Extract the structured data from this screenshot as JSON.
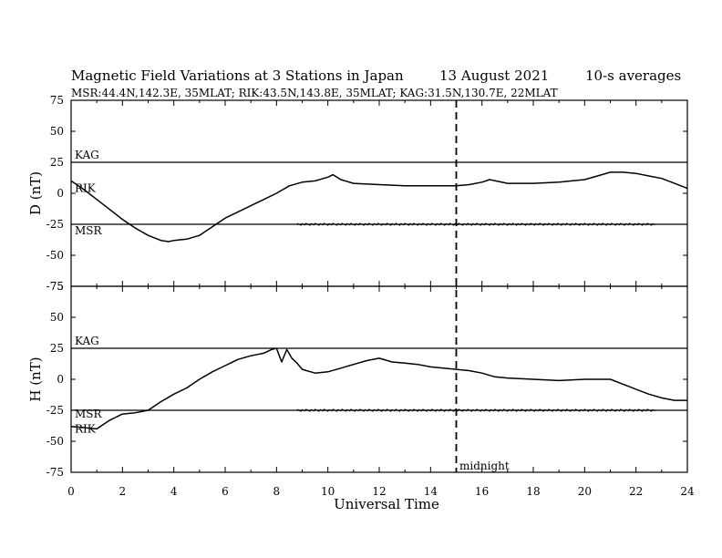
{
  "header": {
    "title": "Magnetic Field Variations at 3 Stations in Japan",
    "date": "13  August  2021",
    "averaging": "10-s averages",
    "stations_line": "MSR:44.4N,142.3E, 35MLAT;  RIK:43.5N,143.8E, 35MLAT;  KAG:31.5N,130.7E, 22MLAT"
  },
  "annotation": {
    "midnight_label": "midnight",
    "midnight_ut": 15
  },
  "chart_data": [
    {
      "type": "line",
      "panel": "D",
      "ylabel": "D (nT)",
      "ylim": [
        -75,
        75
      ],
      "yticks": [
        75,
        50,
        25,
        0,
        -25,
        -50,
        -75
      ],
      "xlim": [
        0,
        24
      ],
      "baselines": [
        {
          "station": "KAG",
          "y": 25
        },
        {
          "station": "MSR",
          "y": -25
        }
      ],
      "station_labels": [
        {
          "name": "KAG",
          "y": 28
        },
        {
          "name": "RIK",
          "y": 1
        },
        {
          "name": "MSR",
          "y": -33
        }
      ],
      "series": [
        {
          "name": "RIK",
          "x": [
            0,
            0.5,
            1,
            1.5,
            2,
            2.5,
            3,
            3.5,
            3.8,
            4,
            4.5,
            5,
            5.5,
            6,
            6.5,
            7,
            7.5,
            8,
            8.5,
            9,
            9.5,
            10,
            10.2,
            10.5,
            11,
            12,
            13,
            14,
            15,
            15.5,
            16,
            16.3,
            17,
            18,
            19,
            20,
            20.5,
            21,
            21.5,
            22,
            22.5,
            23,
            23.5,
            24
          ],
          "y": [
            10,
            3,
            -5,
            -13,
            -21,
            -28,
            -34,
            -38,
            -39,
            -38,
            -37,
            -34,
            -27,
            -20,
            -15,
            -10,
            -5,
            0,
            6,
            9,
            10,
            13,
            15,
            11,
            8,
            7,
            6,
            6,
            6,
            7,
            9,
            11,
            8,
            8,
            9,
            11,
            14,
            17,
            17,
            16,
            14,
            12,
            8,
            4
          ]
        }
      ],
      "flat_traces": [
        {
          "name": "MSR",
          "y": -25,
          "x_start": 8.8,
          "x_end": 22.8
        }
      ]
    },
    {
      "type": "line",
      "panel": "H",
      "ylabel": "H (nT)",
      "ylim": [
        -75,
        75
      ],
      "yticks": [
        75,
        50,
        25,
        0,
        -25,
        -50,
        -75
      ],
      "xlim": [
        0,
        24
      ],
      "xticks": [
        0,
        2,
        4,
        6,
        8,
        10,
        12,
        14,
        16,
        18,
        20,
        22,
        24
      ],
      "xlabel": "Universal Time",
      "baselines": [
        {
          "station": "KAG",
          "y": 25
        },
        {
          "station": "MSR",
          "y": -25
        }
      ],
      "station_labels": [
        {
          "name": "KAG",
          "y": 28
        },
        {
          "name": "MSR",
          "y": -31
        },
        {
          "name": "RIK",
          "y": -43
        }
      ],
      "series": [
        {
          "name": "RIK",
          "x": [
            0,
            0.5,
            1,
            1.5,
            2,
            2.5,
            3,
            3.5,
            4,
            4.5,
            5,
            5.5,
            6,
            6.5,
            7,
            7.5,
            7.8,
            8,
            8.2,
            8.4,
            8.6,
            8.8,
            9,
            9.5,
            10,
            10.5,
            11,
            11.5,
            12,
            12.5,
            13,
            13.5,
            14,
            14.5,
            15,
            15.5,
            16,
            16.5,
            17,
            18,
            19,
            20,
            20.5,
            21,
            21.5,
            22,
            22.5,
            23,
            23.5,
            24
          ],
          "y": [
            -38,
            -39,
            -40,
            -33,
            -28,
            -27,
            -25,
            -18,
            -12,
            -7,
            0,
            6,
            11,
            16,
            19,
            21,
            24,
            25,
            14,
            24,
            17,
            13,
            8,
            5,
            6,
            9,
            12,
            15,
            17,
            14,
            13,
            12,
            10,
            9,
            8,
            7,
            5,
            2,
            1,
            0,
            -1,
            0,
            0,
            0,
            -4,
            -8,
            -12,
            -15,
            -17,
            -17
          ]
        }
      ],
      "flat_traces": [
        {
          "name": "MSR",
          "y": -25,
          "x_start": 8.8,
          "x_end": 22.8
        }
      ]
    }
  ]
}
